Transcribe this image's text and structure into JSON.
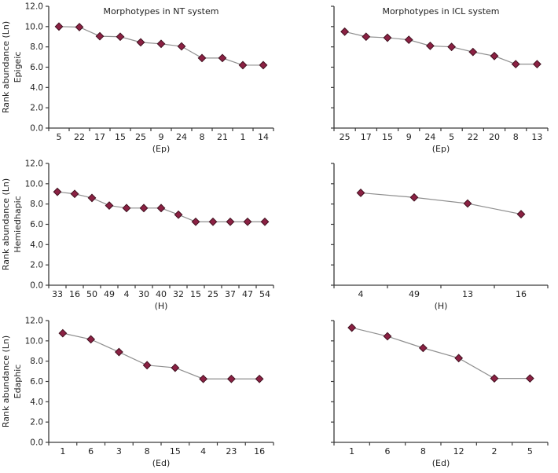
{
  "figure": {
    "name": "Rank abundance of morphotypes",
    "colors": {
      "background": "#ffffff",
      "marker_fill": "#8b2143",
      "marker_stroke": "#40101f",
      "line": "#8f8f8f",
      "axis": "#3a3a3a",
      "text": "#1f1f1f"
    }
  },
  "chart_data": [
    {
      "type": "line",
      "title": "Morphotypes in NT system",
      "ylabel": "Rank abundance (Ln)",
      "group_label": "Epigeic",
      "xlabel": "(Ep)",
      "categories": [
        "5",
        "22",
        "17",
        "15",
        "25",
        "9",
        "24",
        "8",
        "21",
        "1",
        "14"
      ],
      "values": [
        10.0,
        9.95,
        9.05,
        9.0,
        8.45,
        8.3,
        8.05,
        6.9,
        6.9,
        6.2,
        6.2
      ],
      "ylim": [
        0,
        12
      ],
      "ytick_step": 2,
      "show_y_tick_labels": true,
      "column": "left",
      "grid": "off",
      "legend": "none"
    },
    {
      "type": "line",
      "title": "Morphotypes in ICL system",
      "ylabel": null,
      "group_label": null,
      "xlabel": "(Ep)",
      "categories": [
        "25",
        "17",
        "15",
        "9",
        "24",
        "5",
        "22",
        "20",
        "8",
        "13"
      ],
      "values": [
        9.5,
        9.0,
        8.9,
        8.7,
        8.1,
        8.0,
        7.5,
        7.1,
        6.3,
        6.3
      ],
      "ylim": [
        0,
        12
      ],
      "ytick_step": 2,
      "show_y_tick_labels": false,
      "column": "right",
      "grid": "off",
      "legend": "none"
    },
    {
      "type": "line",
      "title": null,
      "ylabel": "Rank abundance (Ln)",
      "group_label": "Hemiedhapic",
      "xlabel": "(H)",
      "categories": [
        "33",
        "16",
        "50",
        "49",
        "4",
        "30",
        "40",
        "32",
        "15",
        "25",
        "37",
        "47",
        "54"
      ],
      "values": [
        9.2,
        9.0,
        8.6,
        7.85,
        7.6,
        7.6,
        7.6,
        6.95,
        6.25,
        6.25,
        6.25,
        6.25,
        6.25
      ],
      "ylim": [
        0,
        12
      ],
      "ytick_step": 2,
      "show_y_tick_labels": true,
      "column": "left",
      "grid": "off",
      "legend": "none"
    },
    {
      "type": "line",
      "title": null,
      "ylabel": null,
      "group_label": null,
      "xlabel": "(H)",
      "categories": [
        "4",
        "49",
        "13",
        "16"
      ],
      "values": [
        9.1,
        8.65,
        8.05,
        7.0
      ],
      "ylim": [
        0,
        12
      ],
      "ytick_step": 2,
      "show_y_tick_labels": false,
      "column": "right",
      "grid": "off",
      "legend": "none"
    },
    {
      "type": "line",
      "title": null,
      "ylabel": "Rank abundance (Ln)",
      "group_label": "Edaphic",
      "xlabel": "(Ed)",
      "categories": [
        "1",
        "6",
        "3",
        "8",
        "15",
        "4",
        "23",
        "16"
      ],
      "values": [
        10.75,
        10.15,
        8.9,
        7.6,
        7.35,
        6.25,
        6.25,
        6.25
      ],
      "ylim": [
        0,
        12
      ],
      "ytick_step": 2,
      "show_y_tick_labels": true,
      "column": "left",
      "grid": "off",
      "legend": "none"
    },
    {
      "type": "line",
      "title": null,
      "ylabel": null,
      "group_label": null,
      "xlabel": "(Ed)",
      "categories": [
        "1",
        "6",
        "8",
        "12",
        "2",
        "5"
      ],
      "values": [
        11.3,
        10.45,
        9.3,
        8.3,
        6.3,
        6.3
      ],
      "ylim": [
        0,
        12
      ],
      "ytick_step": 2,
      "show_y_tick_labels": false,
      "column": "right",
      "grid": "off",
      "legend": "none"
    }
  ]
}
